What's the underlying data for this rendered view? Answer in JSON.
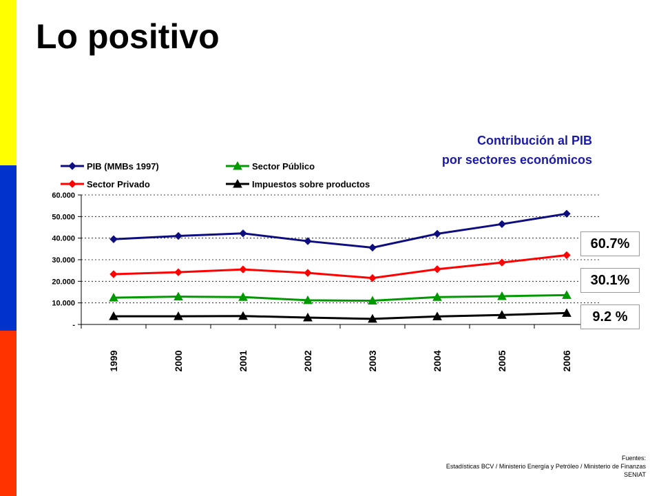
{
  "slide": {
    "title": "Lo positivo",
    "flag_colors": [
      "#ffff00",
      "#0033cc",
      "#ff3300"
    ]
  },
  "chart_heading": {
    "line1": "Contribución al PIB",
    "line2": "por sectores económicos",
    "color": "#1a1aa6"
  },
  "callouts": [
    "60.7%",
    "30.1%",
    "9.2 %"
  ],
  "sources": {
    "label": "Fuentes:",
    "line1": "Estadísticas BCV / Ministerio Energía y Petróleo / Ministerio de Finanzas",
    "line2": "SENIAT"
  },
  "chart_data": {
    "type": "line",
    "title": "Contribución al PIB por sectores económicos",
    "categories": [
      "1999",
      "2000",
      "2001",
      "2002",
      "2003",
      "2004",
      "2005",
      "2006"
    ],
    "ylim": [
      0,
      60000
    ],
    "ytick_values": [
      0,
      10000,
      20000,
      30000,
      40000,
      50000,
      60000
    ],
    "ytick_labels": [
      "-",
      "10.000",
      "20.000",
      "30.000",
      "40.000",
      "50.000",
      "60.000"
    ],
    "grid": "horizontal dashed",
    "legend": "top-left",
    "series": [
      {
        "name": "PIB (MMBs 1997)",
        "color": "#0d0d80",
        "marker": "diamond",
        "values": [
          39500,
          41000,
          42200,
          38600,
          35600,
          42000,
          46500,
          51300
        ]
      },
      {
        "name": "Sector Público",
        "color": "#009900",
        "marker": "triangle",
        "values": [
          12400,
          12900,
          12700,
          11200,
          11000,
          12700,
          13100,
          13600
        ]
      },
      {
        "name": "Sector Privado",
        "color": "#ff0000",
        "marker": "diamond",
        "values": [
          23300,
          24200,
          25500,
          23900,
          21500,
          25600,
          28700,
          32100
        ]
      },
      {
        "name": "Impuestos sobre productos",
        "color": "#000000",
        "marker": "triangle",
        "values": [
          3800,
          3800,
          3900,
          3200,
          2600,
          3700,
          4400,
          5300
        ]
      }
    ]
  }
}
